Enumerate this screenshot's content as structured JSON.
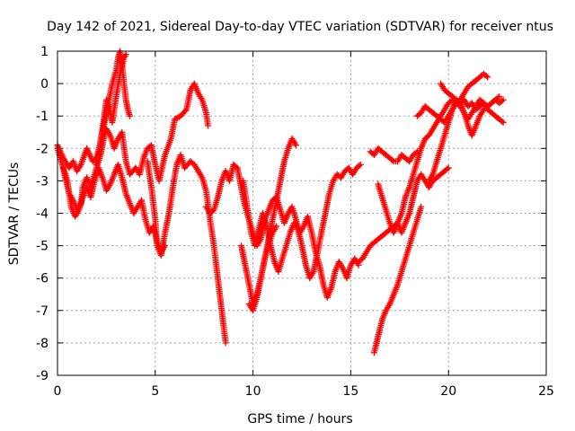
{
  "chart_data": {
    "type": "scatter",
    "title": "Day 142 of 2021, Sidereal Day-to-day VTEC variation (SDTVAR) for receiver ntus",
    "xlabel": "GPS time / hours",
    "ylabel": "SDTVAR / TECUs",
    "xlim": [
      0,
      25
    ],
    "ylim": [
      -9,
      1
    ],
    "xticks": [
      "0",
      "5",
      "10",
      "15",
      "20",
      "25"
    ],
    "yticks": [
      "-9",
      "-8",
      "-7",
      "-6",
      "-5",
      "-4",
      "-3",
      "-2",
      "-1",
      "0",
      "1"
    ],
    "grid": true,
    "legend": "none",
    "marker": "+",
    "color": "#ff0000",
    "series": [
      {
        "x": [
          0.0,
          0.3,
          0.6,
          0.8,
          1.0,
          1.2,
          1.5,
          1.8,
          2.0,
          2.2,
          2.4,
          2.6,
          2.8,
          3.0,
          3.1,
          3.2,
          3.3,
          3.4,
          3.5,
          3.6,
          3.7
        ],
        "y": [
          -1.9,
          -2.3,
          -2.6,
          -2.4,
          -2.7,
          -2.5,
          -2.0,
          -2.4,
          -2.3,
          -1.8,
          -1.2,
          -0.6,
          0.0,
          0.4,
          0.8,
          1.0,
          0.6,
          0.0,
          -0.5,
          -0.8,
          -1.0
        ]
      },
      {
        "x": [
          2.0,
          2.2,
          2.4,
          2.5,
          2.6,
          2.7,
          2.8,
          3.0,
          3.2,
          3.4,
          3.5
        ],
        "y": [
          -2.5,
          -1.8,
          -1.0,
          -0.5,
          -0.6,
          -0.9,
          -1.2,
          -0.4,
          0.3,
          0.8,
          0.9
        ]
      },
      {
        "x": [
          0.0,
          0.2,
          0.4,
          0.6,
          0.8,
          1.0,
          1.2,
          1.3,
          1.5,
          1.7,
          2.0,
          2.2,
          2.4,
          2.5,
          2.7,
          2.9,
          3.1,
          3.3,
          3.5,
          3.7,
          4.0,
          4.2,
          4.4,
          4.6,
          4.8,
          5.0,
          5.2,
          5.5,
          5.8,
          6.0,
          6.3,
          6.6,
          6.8,
          7.0,
          7.2,
          7.4,
          7.6,
          7.7
        ],
        "y": [
          -2.0,
          -2.4,
          -2.9,
          -3.4,
          -3.6,
          -3.9,
          -3.7,
          -3.2,
          -2.9,
          -3.2,
          -2.6,
          -2.2,
          -1.6,
          -1.4,
          -1.6,
          -2.0,
          -1.7,
          -1.5,
          -2.4,
          -2.8,
          -2.6,
          -2.8,
          -2.3,
          -2.0,
          -1.9,
          -2.5,
          -3.0,
          -2.2,
          -1.7,
          -1.1,
          -1.0,
          -0.8,
          -0.2,
          0.0,
          -0.3,
          -0.5,
          -0.9,
          -1.3
        ]
      },
      {
        "x": [
          0.3,
          0.5,
          0.7,
          0.9,
          1.1,
          1.3,
          1.5,
          1.7,
          1.9,
          2.1,
          2.3,
          2.5,
          2.7,
          2.9,
          3.1,
          3.3,
          3.5,
          3.7,
          3.9,
          4.1,
          4.3,
          4.5,
          4.7,
          4.9,
          5.1,
          5.3,
          5.5
        ],
        "y": [
          -2.6,
          -3.0,
          -3.8,
          -4.1,
          -3.9,
          -3.5,
          -3.2,
          -3.5,
          -3.0,
          -2.6,
          -2.9,
          -3.3,
          -3.1,
          -2.8,
          -2.5,
          -2.9,
          -3.4,
          -3.7,
          -4.0,
          -3.8,
          -3.6,
          -4.2,
          -4.6,
          -4.4,
          -4.9,
          -5.2,
          -5.0
        ]
      },
      {
        "x": [
          4.6,
          4.8,
          5.0,
          5.1,
          5.3,
          5.5,
          5.7,
          5.9,
          6.1,
          6.3,
          6.5,
          6.8,
          7.0,
          7.2,
          7.4,
          7.6,
          7.8,
          8.0,
          8.2,
          8.4,
          8.6
        ],
        "y": [
          -2.4,
          -3.2,
          -4.2,
          -5.0,
          -5.3,
          -4.6,
          -4.0,
          -3.2,
          -2.5,
          -2.2,
          -2.6,
          -2.4,
          -2.5,
          -2.7,
          -2.9,
          -3.3,
          -4.2,
          -5.0,
          -6.0,
          -7.0,
          -8.0
        ]
      },
      {
        "x": [
          7.6,
          7.8,
          8.0,
          8.2,
          8.4,
          8.6,
          8.8,
          9.0,
          9.2,
          9.4,
          9.6,
          9.8,
          10.0,
          10.2,
          10.4,
          10.6,
          10.8,
          11.0,
          11.2,
          11.4,
          11.6,
          11.8,
          12.0,
          12.2,
          12.4,
          12.6,
          12.8,
          13.0,
          13.2,
          13.4,
          13.6,
          13.8,
          14.0,
          14.2,
          14.4,
          14.6,
          14.8,
          15.0,
          15.2,
          15.4
        ],
        "y": [
          -3.8,
          -4.0,
          -3.9,
          -3.5,
          -3.0,
          -2.7,
          -3.0,
          -2.5,
          -2.6,
          -3.2,
          -3.8,
          -4.2,
          -4.6,
          -5.0,
          -4.8,
          -4.2,
          -3.9,
          -3.6,
          -3.5,
          -3.9,
          -4.3,
          -4.0,
          -3.8,
          -4.2,
          -4.6,
          -4.4,
          -4.1,
          -4.6,
          -5.2,
          -5.6,
          -6.2,
          -6.6,
          -6.3,
          -5.8,
          -5.5,
          -5.7,
          -6.0,
          -5.6,
          -5.4,
          -5.6
        ]
      },
      {
        "x": [
          9.5,
          9.7,
          9.9,
          10.1,
          10.3,
          10.5,
          10.7,
          10.9,
          11.1,
          11.3,
          11.5,
          11.7,
          11.9,
          12.1,
          12.3,
          12.5,
          12.7,
          12.9,
          13.1,
          13.3,
          13.5,
          13.7,
          13.9,
          14.1,
          14.3,
          14.5,
          14.7,
          14.9,
          15.1,
          15.3,
          15.5
        ],
        "y": [
          -3.0,
          -3.8,
          -4.6,
          -5.0,
          -4.5,
          -4.0,
          -4.4,
          -5.0,
          -5.5,
          -5.8,
          -5.4,
          -5.0,
          -4.6,
          -4.3,
          -4.5,
          -5.0,
          -5.6,
          -6.0,
          -5.8,
          -5.2,
          -4.6,
          -4.0,
          -3.4,
          -3.0,
          -2.8,
          -2.9,
          -2.7,
          -2.6,
          -2.8,
          -2.6,
          -2.5
        ]
      },
      {
        "x": [
          9.8,
          10.0,
          10.2,
          10.4,
          10.6,
          10.8,
          11.0,
          11.2,
          11.4,
          11.6,
          11.8,
          12.0,
          12.2
        ],
        "y": [
          -6.8,
          -7.0,
          -6.6,
          -6.0,
          -5.4,
          -4.8,
          -4.2,
          -3.6,
          -3.0,
          -2.4,
          -2.0,
          -1.7,
          -1.9
        ]
      },
      {
        "x": [
          9.4,
          9.6,
          9.8,
          10.0,
          10.2,
          10.4,
          10.6,
          10.8,
          11.0,
          11.2
        ],
        "y": [
          -5.0,
          -5.6,
          -6.2,
          -6.8,
          -6.5,
          -6.0,
          -5.4,
          -5.0,
          -4.6,
          -4.4
        ]
      },
      {
        "x": [
          15.4,
          15.6,
          15.8,
          16.0,
          16.2,
          16.4,
          16.6,
          16.8,
          17.0,
          17.2,
          17.4,
          17.6,
          17.8,
          18.0,
          18.2,
          18.4,
          18.6,
          18.8,
          19.0,
          19.2,
          19.4,
          19.6,
          19.8,
          20.0
        ],
        "y": [
          -5.5,
          -5.4,
          -5.2,
          -5.0,
          -4.9,
          -4.8,
          -4.7,
          -4.6,
          -4.5,
          -4.4,
          -4.3,
          -4.6,
          -4.3,
          -4.0,
          -3.5,
          -3.0,
          -2.8,
          -3.0,
          -3.2,
          -3.0,
          -2.9,
          -2.8,
          -2.7,
          -2.6
        ]
      },
      {
        "x": [
          16.2,
          16.4,
          16.6,
          16.8,
          17.0,
          17.2,
          17.4,
          17.6,
          17.8,
          18.0,
          18.2,
          18.4,
          18.6
        ],
        "y": [
          -8.3,
          -7.8,
          -7.3,
          -7.0,
          -6.8,
          -6.5,
          -6.2,
          -5.8,
          -5.4,
          -5.0,
          -4.6,
          -4.2,
          -3.8
        ]
      },
      {
        "x": [
          16.4,
          16.6,
          16.8,
          17.0,
          17.2,
          17.4,
          17.6,
          17.8,
          18.0,
          18.2,
          18.4,
          18.6,
          18.8,
          19.0,
          19.2,
          19.4,
          19.6,
          19.8,
          20.0,
          20.2,
          20.4,
          20.6,
          20.8,
          21.0,
          21.2,
          21.4,
          21.6,
          21.8,
          22.0
        ],
        "y": [
          -3.1,
          -3.5,
          -3.9,
          -4.3,
          -4.6,
          -4.3,
          -4.0,
          -3.5,
          -3.2,
          -2.8,
          -2.4,
          -2.0,
          -1.7,
          -1.6,
          -1.4,
          -1.2,
          -1.0,
          -0.8,
          -0.6,
          -0.5,
          -0.6,
          -0.5,
          -0.3,
          -0.1,
          -0.0,
          0.1,
          0.2,
          0.3,
          0.2
        ]
      },
      {
        "x": [
          16.0,
          16.2,
          16.4,
          16.6,
          16.8,
          17.0,
          17.2,
          17.4,
          17.6,
          17.8,
          18.0,
          18.2,
          18.4
        ],
        "y": [
          -2.1,
          -2.2,
          -2.0,
          -2.1,
          -2.2,
          -2.3,
          -2.4,
          -2.4,
          -2.2,
          -2.3,
          -2.4,
          -2.2,
          -2.1
        ]
      },
      {
        "x": [
          18.4,
          18.6,
          18.8,
          19.0,
          19.2,
          19.4,
          19.6,
          19.8,
          20.0,
          20.2,
          20.4,
          20.6,
          20.8,
          21.0,
          21.2,
          21.4,
          21.6,
          21.8,
          22.0,
          22.2,
          22.4,
          22.6,
          22.8
        ],
        "y": [
          -1.0,
          -0.9,
          -0.7,
          -0.8,
          -0.9,
          -1.0,
          -1.1,
          -1.2,
          -1.0,
          -0.8,
          -0.6,
          -0.7,
          -0.9,
          -1.1,
          -0.9,
          -0.7,
          -0.5,
          -0.6,
          -0.8,
          -0.9,
          -1.0,
          -1.1,
          -1.2
        ]
      },
      {
        "x": [
          19.6,
          19.8,
          20.0,
          20.2,
          20.4,
          20.6,
          20.8,
          21.0,
          21.2,
          21.4,
          21.6,
          21.8,
          22.0,
          22.2,
          22.4,
          22.6,
          22.8
        ],
        "y": [
          0.0,
          -0.2,
          -0.3,
          -0.4,
          -0.5,
          -0.6,
          -0.5,
          -0.7,
          -0.6,
          -0.8,
          -0.7,
          -0.6,
          -0.7,
          -0.6,
          -0.5,
          -0.6,
          -0.5
        ]
      },
      {
        "x": [
          19.0,
          19.2,
          19.4,
          19.6,
          19.8,
          20.0,
          20.2,
          20.4,
          20.6,
          20.8,
          21.0,
          21.2,
          21.4,
          21.6,
          21.8,
          22.0,
          22.2,
          22.4,
          22.6
        ],
        "y": [
          -3.0,
          -2.8,
          -2.4,
          -2.0,
          -1.6,
          -1.2,
          -0.8,
          -0.5,
          -0.6,
          -0.9,
          -1.3,
          -1.6,
          -1.3,
          -1.0,
          -0.8,
          -0.7,
          -0.6,
          -0.5,
          -0.4
        ]
      }
    ]
  }
}
